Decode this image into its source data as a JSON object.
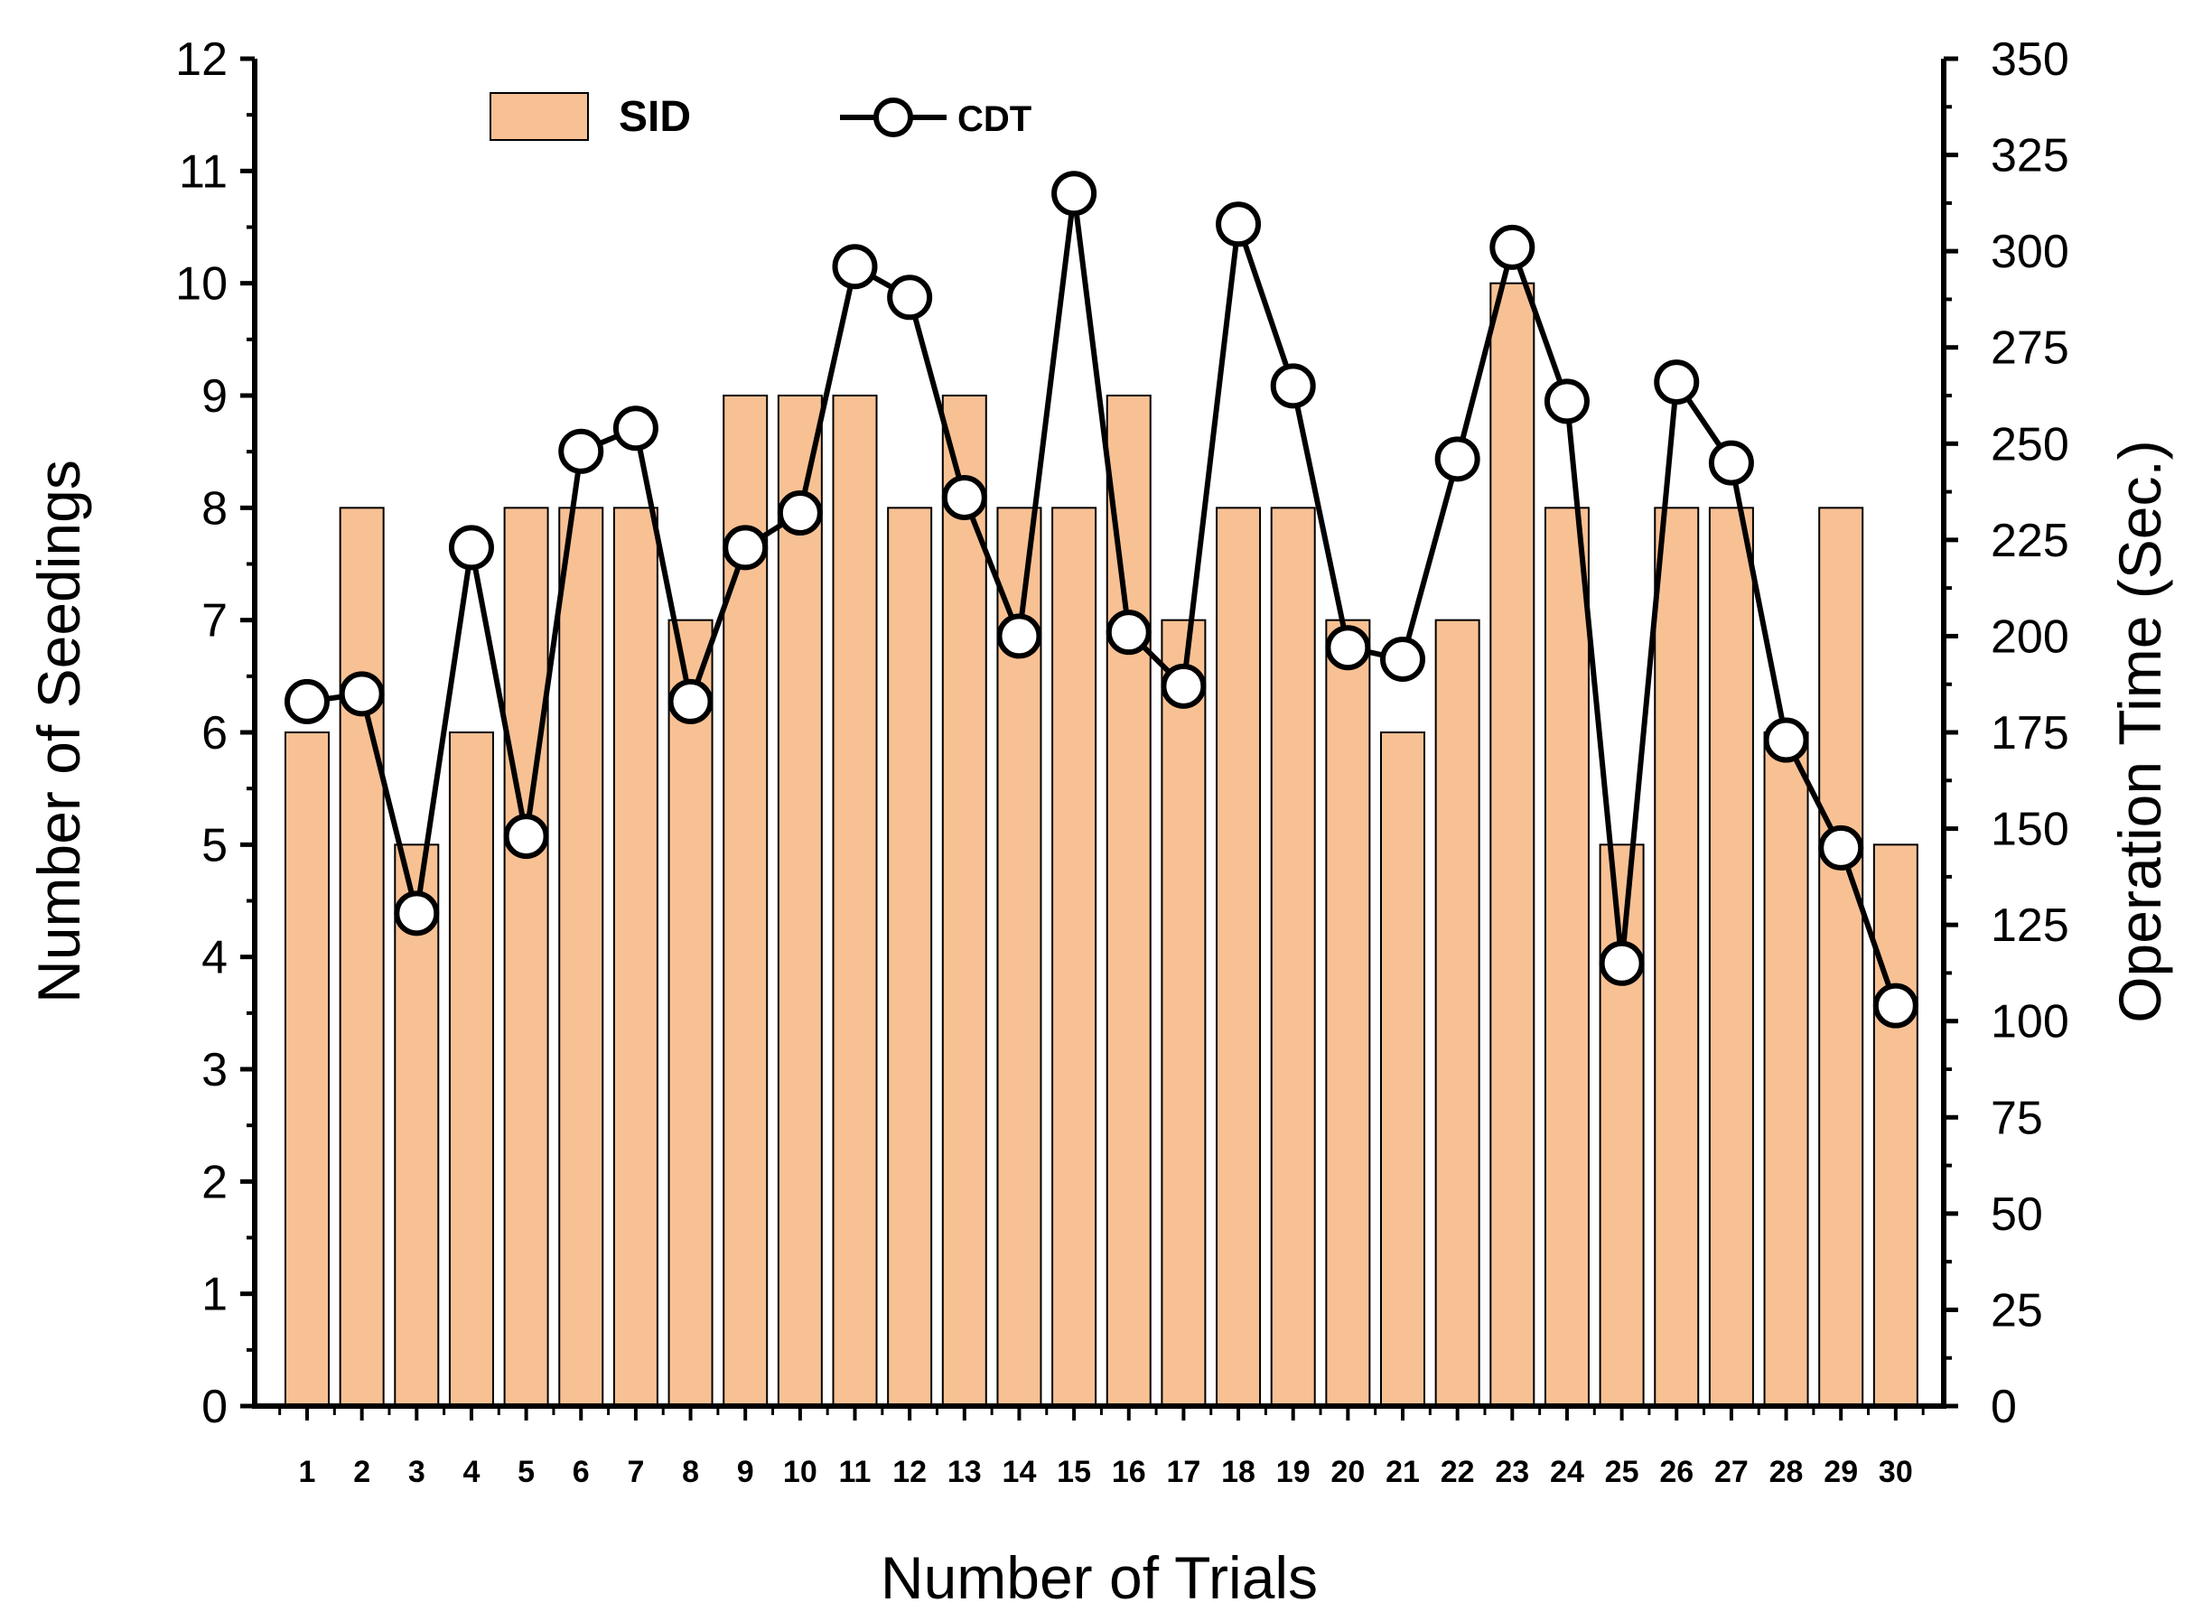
{
  "chart_data": {
    "type": "bar+line",
    "xlabel": "Number of Trials",
    "ylabel": "Number of Seedings",
    "y2label": "Operation Time (Sec.)",
    "categories": [
      "1",
      "2",
      "3",
      "4",
      "5",
      "6",
      "7",
      "8",
      "9",
      "10",
      "11",
      "12",
      "13",
      "14",
      "15",
      "16",
      "17",
      "18",
      "19",
      "20",
      "21",
      "22",
      "23",
      "24",
      "25",
      "26",
      "27",
      "28",
      "29",
      "30"
    ],
    "ylim": [
      0,
      12
    ],
    "yticks": [
      0,
      1,
      2,
      3,
      4,
      5,
      6,
      7,
      8,
      9,
      10,
      11,
      12
    ],
    "y2lim": [
      0,
      350
    ],
    "y2ticks": [
      0,
      25,
      50,
      75,
      100,
      125,
      150,
      175,
      200,
      225,
      250,
      275,
      300,
      325,
      350
    ],
    "series": [
      {
        "name": "SID",
        "type": "bar",
        "axis": "left",
        "color": "#F8C194",
        "values": [
          6,
          8,
          5,
          6,
          8,
          8,
          8,
          7,
          9,
          9,
          9,
          8,
          9,
          8,
          8,
          9,
          7,
          8,
          8,
          7,
          6,
          7,
          10,
          8,
          5,
          8,
          8,
          6,
          8,
          5
        ]
      },
      {
        "name": "CDT",
        "type": "line",
        "axis": "right",
        "color": "#000000",
        "marker": "open-circle",
        "values": [
          183,
          185,
          128,
          223,
          148,
          248,
          254,
          183,
          223,
          232,
          296,
          288,
          236,
          200,
          315,
          201,
          187,
          307,
          265,
          197,
          194,
          246,
          301,
          261,
          115,
          266,
          245,
          173,
          145,
          104
        ]
      }
    ],
    "legend": {
      "position": "top-left"
    }
  }
}
